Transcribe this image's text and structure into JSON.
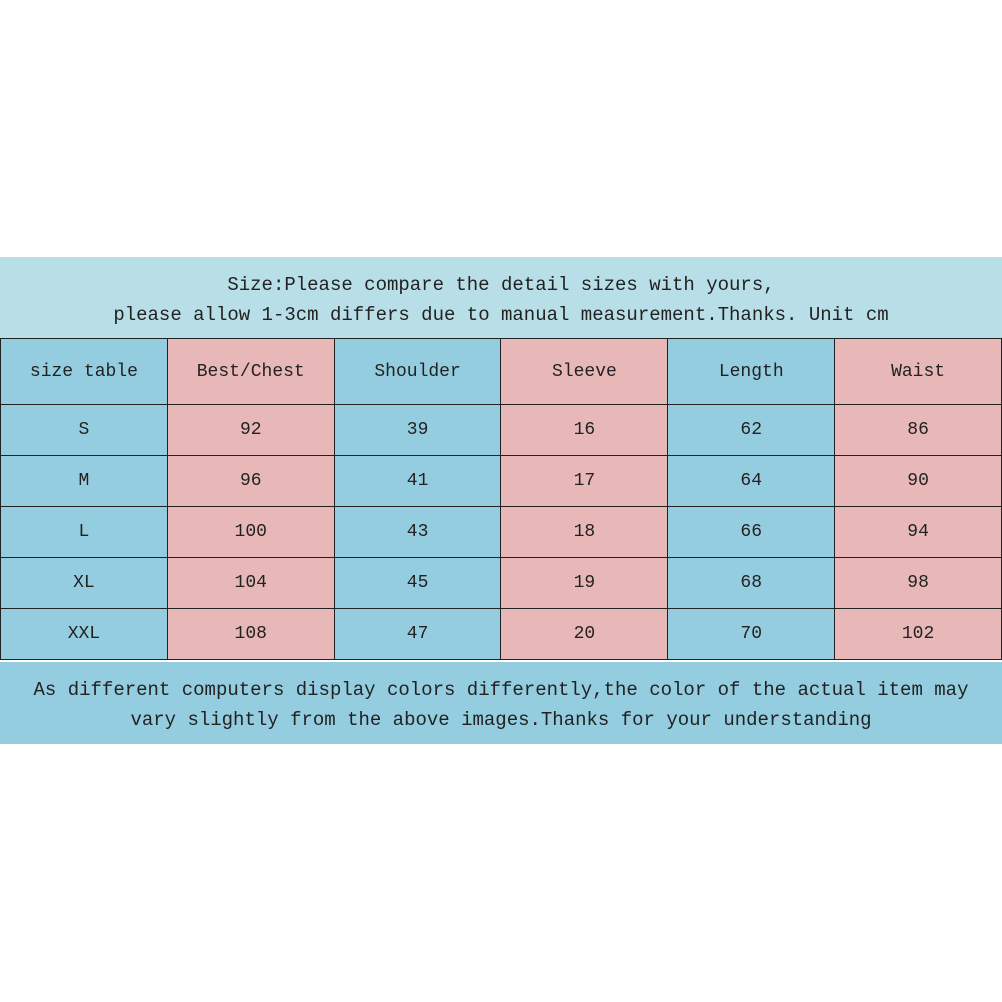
{
  "header": {
    "line1": "Size:Please compare the detail sizes with yours,",
    "line2": "please allow 1-3cm differs due to manual measurement.Thanks. Unit cm"
  },
  "table": {
    "columns": [
      "size table",
      "Best/Chest",
      "Shoulder",
      "Sleeve",
      "Length",
      "Waist"
    ],
    "rows": [
      [
        "S",
        "92",
        "39",
        "16",
        "62",
        "86"
      ],
      [
        "M",
        "96",
        "41",
        "17",
        "64",
        "90"
      ],
      [
        "L",
        "100",
        "43",
        "18",
        "66",
        "94"
      ],
      [
        "XL",
        "104",
        "45",
        "19",
        "68",
        "98"
      ],
      [
        "XXL",
        "108",
        "47",
        "20",
        "70",
        "102"
      ]
    ]
  },
  "footer": {
    "line1": "As different computers display colors differently,the color of the actual item may",
    "line2": "vary slightly from the above images.Thanks for your understanding"
  },
  "colors": {
    "blue": "#94cde0",
    "pink": "#e8b8b8",
    "light_blue": "#b8dfe8"
  }
}
